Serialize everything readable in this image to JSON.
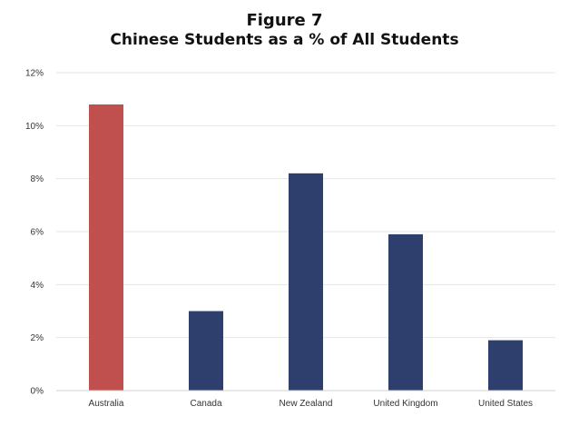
{
  "chart_data": {
    "type": "bar",
    "title": "Figure 7",
    "subtitle": "Chinese Students as a % of All Students",
    "xlabel": "",
    "ylabel": "",
    "categories": [
      "Australia",
      "Canada",
      "New Zealand",
      "United Kingdom",
      "United States"
    ],
    "values": [
      10.8,
      3.0,
      8.2,
      5.9,
      1.9
    ],
    "ylim": [
      0,
      12
    ],
    "y_ticks": [
      0,
      2,
      4,
      6,
      8,
      10,
      12
    ],
    "y_tick_labels": [
      "0%",
      "2%",
      "4%",
      "6%",
      "8%",
      "10%",
      "12%"
    ],
    "grid": true,
    "legend": false,
    "bar_colors": [
      "#c0504d",
      "#2e3f6e",
      "#2e3f6e",
      "#2e3f6e",
      "#2e3f6e"
    ],
    "grid_color": "#e6e6e6",
    "axis_color": "#d0d0d0"
  }
}
